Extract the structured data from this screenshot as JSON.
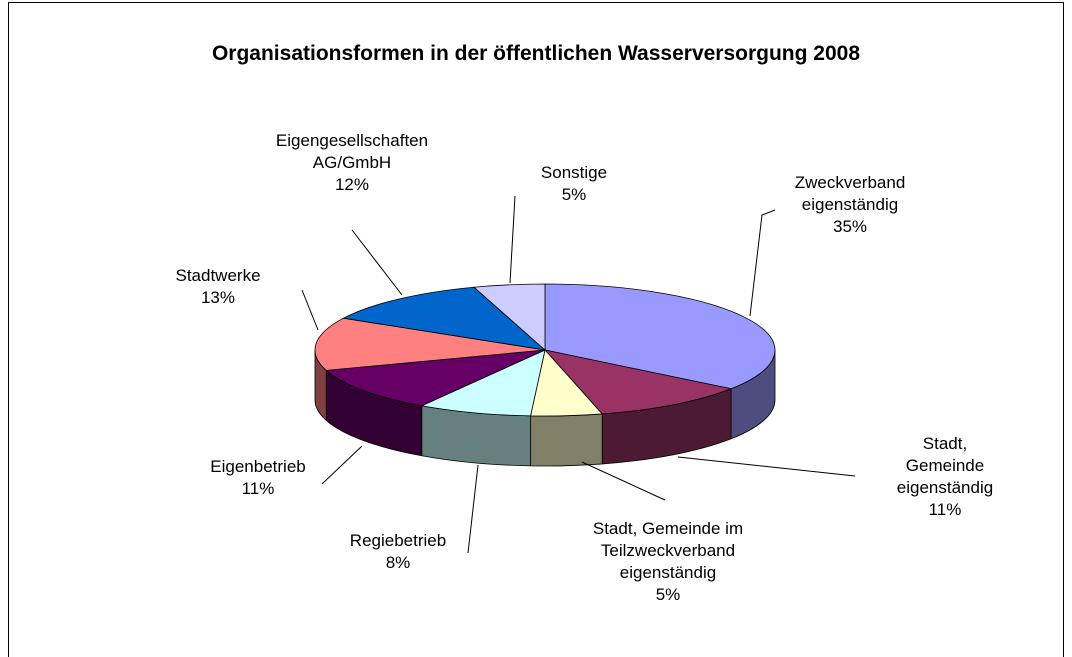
{
  "chart_data": {
    "type": "pie",
    "title": "Organisationsformen in der öffentlichen Wasserversorgung 2008",
    "categories": [
      "Zweckverband\neigenständig",
      "Stadt, Gemeinde\neigenständig",
      "Stadt, Gemeinde im\nTeilzweckverband\neigenständig",
      "Regiebetrieb",
      "Eigenbetrieb",
      "Stadtwerke",
      "Eigengesellschaften\nAG/GmbH",
      "Sonstige"
    ],
    "values": [
      35,
      11,
      5,
      8,
      11,
      13,
      12,
      5
    ],
    "value_labels": [
      "35%",
      "11%",
      "5%",
      "8%",
      "11%",
      "13%",
      "12%",
      "5%"
    ],
    "colors": [
      "#9999ff",
      "#993366",
      "#ffffcc",
      "#ccffff",
      "#660066",
      "#ff8080",
      "#0066cc",
      "#ccccff"
    ]
  }
}
